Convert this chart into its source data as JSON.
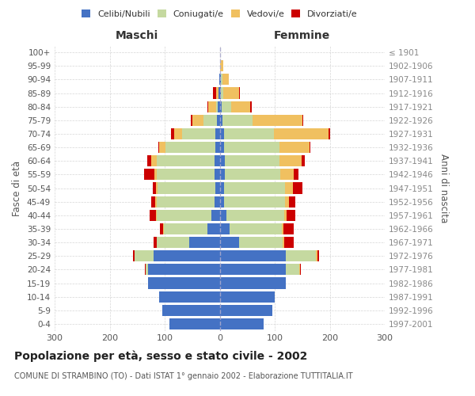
{
  "age_groups": [
    "0-4",
    "5-9",
    "10-14",
    "15-19",
    "20-24",
    "25-29",
    "30-34",
    "35-39",
    "40-44",
    "45-49",
    "50-54",
    "55-59",
    "60-64",
    "65-69",
    "70-74",
    "75-79",
    "80-84",
    "85-89",
    "90-94",
    "95-99",
    "100+"
  ],
  "birth_years": [
    "1997-2001",
    "1992-1996",
    "1987-1991",
    "1982-1986",
    "1977-1981",
    "1972-1976",
    "1967-1971",
    "1962-1966",
    "1957-1961",
    "1952-1956",
    "1947-1951",
    "1942-1946",
    "1937-1941",
    "1932-1936",
    "1927-1931",
    "1922-1926",
    "1917-1921",
    "1912-1916",
    "1907-1911",
    "1902-1906",
    "≤ 1901"
  ],
  "male": {
    "celibe": [
      92,
      105,
      110,
      130,
      130,
      120,
      55,
      22,
      15,
      10,
      8,
      9,
      9,
      8,
      8,
      5,
      3,
      2,
      1,
      0,
      0
    ],
    "coniugato": [
      0,
      0,
      0,
      0,
      5,
      35,
      60,
      80,
      100,
      105,
      105,
      105,
      105,
      90,
      60,
      25,
      3,
      0,
      0,
      0,
      0
    ],
    "vedovo": [
      0,
      0,
      0,
      0,
      0,
      0,
      0,
      1,
      1,
      2,
      3,
      5,
      10,
      12,
      15,
      20,
      15,
      5,
      0,
      0,
      0
    ],
    "divorziato": [
      0,
      0,
      0,
      0,
      1,
      3,
      5,
      5,
      12,
      8,
      5,
      18,
      8,
      2,
      5,
      2,
      2,
      5,
      0,
      0,
      0
    ]
  },
  "female": {
    "nubile": [
      80,
      95,
      100,
      120,
      120,
      120,
      35,
      18,
      12,
      8,
      8,
      10,
      9,
      8,
      8,
      5,
      3,
      2,
      2,
      1,
      0
    ],
    "coniugata": [
      0,
      0,
      0,
      0,
      25,
      55,
      80,
      95,
      105,
      110,
      110,
      100,
      100,
      100,
      90,
      55,
      18,
      5,
      3,
      0,
      0
    ],
    "vedova": [
      0,
      0,
      0,
      0,
      1,
      2,
      2,
      3,
      5,
      8,
      15,
      25,
      40,
      55,
      100,
      90,
      35,
      28,
      12,
      5,
      0
    ],
    "divorziata": [
      0,
      0,
      0,
      0,
      2,
      3,
      18,
      18,
      15,
      12,
      18,
      8,
      5,
      2,
      2,
      2,
      2,
      2,
      0,
      0,
      0
    ]
  },
  "colors": {
    "celibe_nubile": "#4472c4",
    "coniugato_coniugata": "#c5d9a0",
    "vedovo_vedova": "#f0c060",
    "divorziato_divorziata": "#cc0000"
  },
  "xlim": 300,
  "title": "Popolazione per età, sesso e stato civile - 2002",
  "subtitle": "COMUNE DI STRAMBINO (TO) - Dati ISTAT 1° gennaio 2002 - Elaborazione TUTTITALIA.IT",
  "ylabel_left": "Fasce di età",
  "ylabel_right": "Anni di nascita",
  "xlabel_left": "Maschi",
  "xlabel_right": "Femmine",
  "legend_labels": [
    "Celibi/Nubili",
    "Coniugati/e",
    "Vedovi/e",
    "Divorziati/e"
  ],
  "background_color": "#ffffff",
  "grid_color": "#cccccc"
}
